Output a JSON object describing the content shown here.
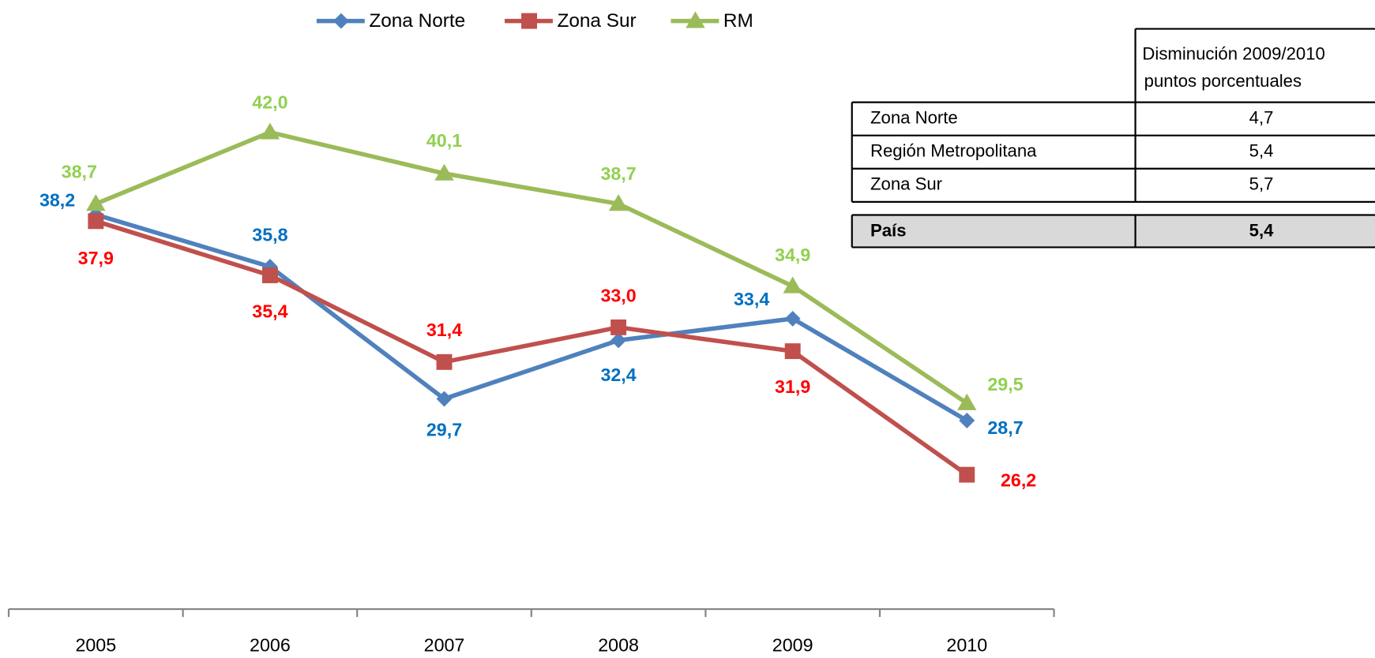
{
  "chart_data": {
    "type": "line",
    "categories": [
      "2005",
      "2006",
      "2007",
      "2008",
      "2009",
      "2010"
    ],
    "ylim": [
      20,
      45
    ],
    "series": [
      {
        "name": "Zona Norte",
        "color": "#4f81bd",
        "label_color": "#0070c0",
        "values": [
          38.2,
          35.8,
          29.7,
          32.4,
          33.4,
          28.7
        ],
        "value_labels": [
          "38,2",
          "35,8",
          "29,7",
          "32,4",
          "33,4",
          "28,7"
        ]
      },
      {
        "name": "Zona Sur",
        "color": "#c0504d",
        "label_color": "#ff0000",
        "values": [
          37.9,
          35.4,
          31.4,
          33.0,
          31.9,
          26.2
        ],
        "value_labels": [
          "37,9",
          "35,4",
          "31,4",
          "33,0",
          "31,9",
          "26,2"
        ]
      },
      {
        "name": "RM",
        "color": "#9bbb59",
        "label_color": "#92d050",
        "values": [
          38.7,
          42.0,
          40.1,
          38.7,
          34.9,
          29.5
        ],
        "value_labels": [
          "38,7",
          "42,0",
          "40,1",
          "38,7",
          "34,9",
          "29,5"
        ]
      }
    ]
  },
  "table": {
    "header": [
      "Disminución 2009/2010",
      "puntos porcentuales"
    ],
    "rows": [
      [
        "Zona Norte",
        "4,7"
      ],
      [
        "Región Metropolitana",
        "5,4"
      ],
      [
        "Zona Sur",
        "5,7"
      ]
    ],
    "total": [
      "País",
      "5,4"
    ]
  }
}
